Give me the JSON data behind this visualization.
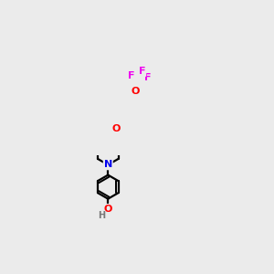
{
  "background_color": "#ebebeb",
  "bond_color": "#000000",
  "atom_colors": {
    "O": "#ff0000",
    "N": "#0000ee",
    "F": "#ee00ee",
    "H": "#777777",
    "C": "#000000"
  },
  "bond_lw": 1.6,
  "font_size": 8
}
